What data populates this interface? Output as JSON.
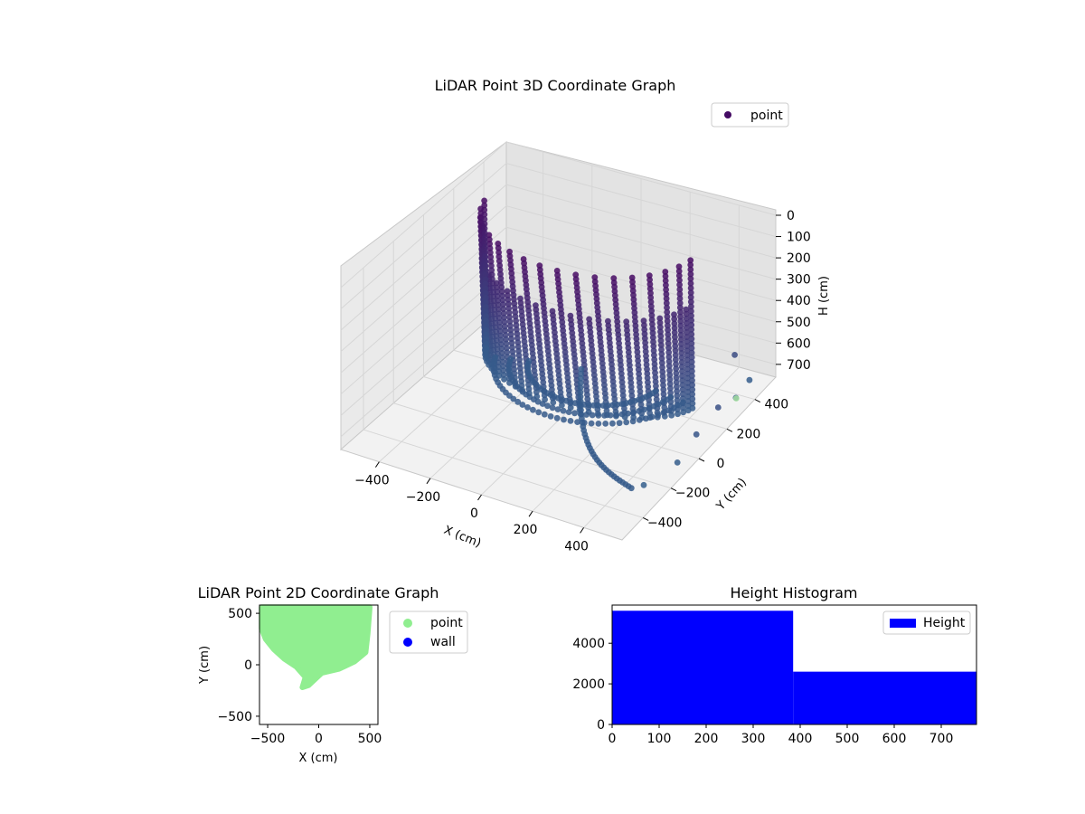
{
  "chart_data": [
    {
      "type": "scatter3d",
      "title": "LiDAR Point 3D Coordinate Graph",
      "xlabel": "X (cm)",
      "ylabel": "Y (cm)",
      "zlabel": "H (cm)",
      "xlim": [
        -550,
        550
      ],
      "ylim": [
        -550,
        550
      ],
      "zlim": [
        0,
        760
      ],
      "x_ticks": [
        -400,
        -200,
        0,
        200,
        400
      ],
      "y_ticks": [
        -400,
        -200,
        0,
        200,
        400
      ],
      "z_ticks": [
        0,
        100,
        200,
        300,
        400,
        500,
        600,
        700
      ],
      "z_inverted": true,
      "legend": [
        "point"
      ],
      "legend_location": "top-right",
      "colormap": "viridis",
      "structures": [
        {
          "kind": "curved_wall",
          "x_range": [
            -400,
            400
          ],
          "y_center": 200,
          "y_depth": 350,
          "h_range": [
            0,
            720
          ]
        },
        {
          "kind": "floor_rings",
          "h": 700,
          "radii": [
            250,
            300,
            350
          ]
        },
        {
          "kind": "ground_arc",
          "from": [
            450,
            -300
          ],
          "to": [
            -100,
            250
          ],
          "h": 700
        }
      ],
      "grid": true
    },
    {
      "type": "scatter",
      "title": "LiDAR Point 2D Coordinate Graph",
      "xlabel": "X (cm)",
      "ylabel": "Y (cm)",
      "xlim": [
        -580,
        580
      ],
      "ylim": [
        -580,
        580
      ],
      "x_ticks": [
        -500,
        0,
        500
      ],
      "y_ticks": [
        -500,
        0,
        500
      ],
      "series": [
        {
          "name": "point",
          "color": "#90ee90",
          "outline": [
            [
              -560,
              560
            ],
            [
              -560,
              350
            ],
            [
              -520,
              250
            ],
            [
              -440,
              150
            ],
            [
              -340,
              60
            ],
            [
              -220,
              -20
            ],
            [
              -130,
              -120
            ],
            [
              -160,
              -220
            ],
            [
              -100,
              -200
            ],
            [
              30,
              -80
            ],
            [
              200,
              -40
            ],
            [
              350,
              30
            ],
            [
              460,
              120
            ],
            [
              480,
              300
            ],
            [
              500,
              560
            ]
          ]
        },
        {
          "name": "wall",
          "color": "#0000ff",
          "outline": []
        }
      ],
      "legend_location": "outside-right"
    },
    {
      "type": "bar",
      "title": "Height Histogram",
      "categories": [
        "0-385",
        "385-775"
      ],
      "bin_edges": [
        0,
        385,
        775
      ],
      "values": [
        5600,
        2600
      ],
      "xlim": [
        0,
        775
      ],
      "ylim": [
        0,
        5880
      ],
      "x_ticks": [
        0,
        100,
        200,
        300,
        400,
        500,
        600,
        700
      ],
      "y_ticks": [
        0,
        2000,
        4000
      ],
      "legend": [
        "Height"
      ],
      "legend_location": "top-right",
      "color": "#0000ff"
    }
  ]
}
